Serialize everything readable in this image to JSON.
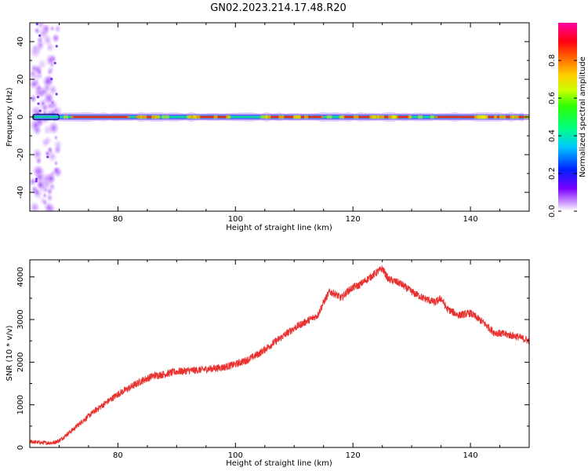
{
  "figure_title": "GN02.2023.214.17.48.R20",
  "colors": {
    "snr_line": "#e8302e",
    "axis": "#000000",
    "spectro_bg": "#ffffff"
  },
  "chart_data": [
    {
      "type": "heatmap",
      "title": "",
      "xlabel": "Height of straight line (km)",
      "ylabel": "Frequency (Hz)",
      "xlim": [
        65,
        150
      ],
      "ylim": [
        -50,
        50
      ],
      "x_ticks": [
        "80",
        "100",
        "120",
        "140"
      ],
      "y_ticks": [
        "-40",
        "-20",
        "0",
        "20",
        "40"
      ],
      "grid": false,
      "colorbar": {
        "label": "Normalized spectral amplitude",
        "range": [
          0.0,
          1.0
        ],
        "ticks": [
          "0.0",
          "0.2",
          "0.4",
          "0.6",
          "0.8"
        ],
        "colormap": "gist_ncar-like (white, violet, blue, cyan, green, yellow, orange, red, magenta)"
      },
      "features": [
        {
          "description": "noisy low-amplitude speckle",
          "x_range": [
            65,
            70
          ],
          "y_range": [
            -50,
            50
          ],
          "amplitude": 0.15
        },
        {
          "description": "strong narrow band centered at 0 Hz",
          "x_range": [
            65,
            150
          ],
          "y_range": [
            -3,
            3
          ],
          "amplitude_peak": 1.0
        },
        {
          "description": "weaker halo around band",
          "x_range": [
            70,
            150
          ],
          "y_range": [
            -5,
            5
          ],
          "amplitude": 0.2
        }
      ]
    },
    {
      "type": "line",
      "title": "",
      "xlabel": "Height of straight line (km)",
      "ylabel": "SNR (10 * v/v)",
      "xlim": [
        65,
        150
      ],
      "ylim": [
        0,
        4400
      ],
      "x_ticks": [
        "80",
        "100",
        "120",
        "140"
      ],
      "y_ticks": [
        "0",
        "1000",
        "2000",
        "3000",
        "4000"
      ],
      "grid": false,
      "series": [
        {
          "name": "",
          "color": "#e8302e",
          "x": [
            65,
            67,
            69,
            70,
            72,
            74,
            76,
            78,
            80,
            82,
            84,
            86,
            88,
            90,
            92,
            94,
            96,
            98,
            100,
            102,
            104,
            106,
            108,
            110,
            112,
            114,
            115,
            116,
            117,
            118,
            119,
            120,
            121,
            122,
            123,
            124,
            125,
            126,
            127,
            128,
            130,
            132,
            134,
            135,
            136,
            138,
            140,
            142,
            144,
            146,
            148,
            150
          ],
          "y": [
            140,
            110,
            110,
            160,
            380,
            620,
            850,
            1050,
            1250,
            1400,
            1560,
            1680,
            1720,
            1780,
            1800,
            1820,
            1850,
            1880,
            1950,
            2050,
            2200,
            2400,
            2600,
            2800,
            2950,
            3100,
            3400,
            3650,
            3600,
            3500,
            3650,
            3750,
            3800,
            3900,
            4000,
            4100,
            4200,
            3950,
            3900,
            3850,
            3650,
            3500,
            3400,
            3500,
            3250,
            3100,
            3150,
            2950,
            2700,
            2650,
            2600,
            2500
          ]
        }
      ],
      "noise_amplitude": 90
    }
  ]
}
